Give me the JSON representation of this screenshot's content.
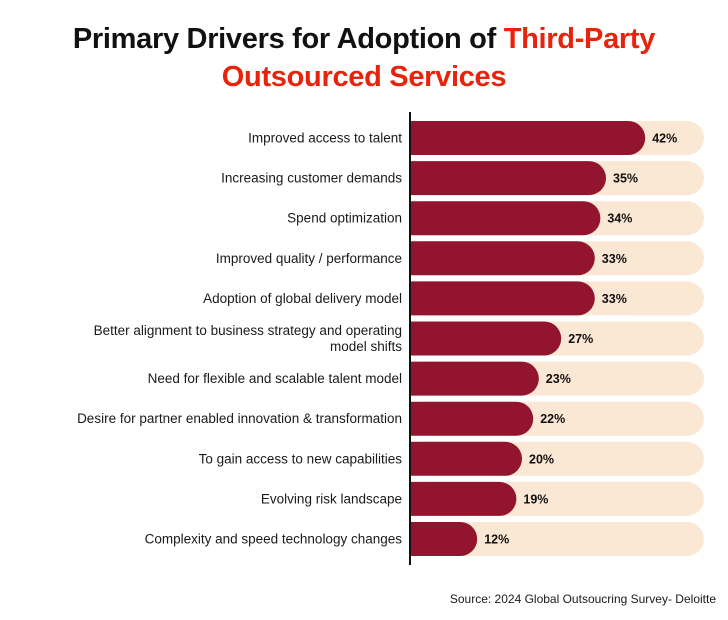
{
  "title": {
    "line1_prefix": "Primary Drivers for Adoption of ",
    "line1_accent": "Third-Party",
    "line2_accent": "Outsourced Services"
  },
  "source": "Source: 2024 Global Outsoucring Survey- Deloitte",
  "colors": {
    "bar": "#93142e",
    "track": "#fbe8d4",
    "accent": "#e8230c",
    "axis": "#111111"
  },
  "chart_data": {
    "type": "bar",
    "orientation": "horizontal",
    "title": "Primary Drivers for Adoption of Third-Party Outsourced Services",
    "xlim": [
      0,
      100
    ],
    "categories": [
      [
        "Improved access to talent"
      ],
      [
        "Increasing customer demands"
      ],
      [
        "Spend optimization"
      ],
      [
        "Improved quality / performance"
      ],
      [
        "Adoption of global delivery model"
      ],
      [
        "Better alignment to business strategy and operating",
        "model shifts"
      ],
      [
        "Need for flexible and scalable talent model"
      ],
      [
        "Desire for partner enabled innovation & transformation"
      ],
      [
        "To gain access to new capabilities"
      ],
      [
        "Evolving risk landscape"
      ],
      [
        "Complexity and speed technology changes"
      ]
    ],
    "values": [
      42,
      35,
      34,
      33,
      33,
      27,
      23,
      22,
      20,
      19,
      12
    ],
    "value_labels": [
      "42%",
      "35%",
      "34%",
      "33%",
      "33%",
      "27%",
      "23%",
      "22%",
      "20%",
      "19%",
      "12%"
    ]
  }
}
